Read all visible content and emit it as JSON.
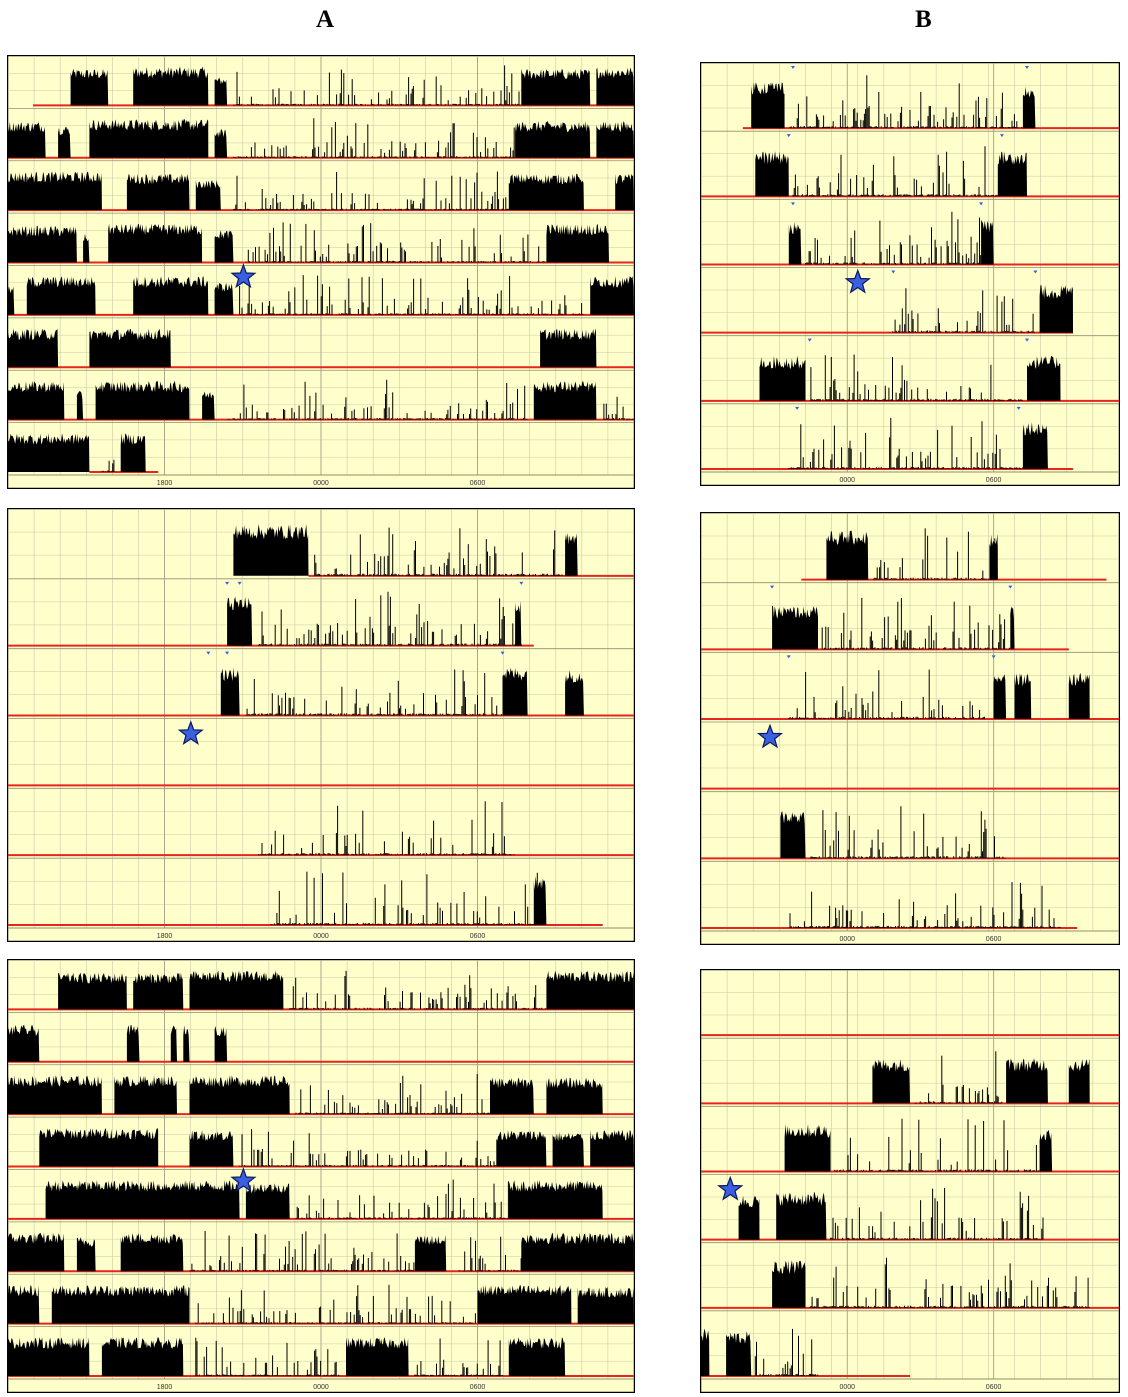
{
  "columns": [
    {
      "label": "A"
    },
    {
      "label": "B"
    }
  ],
  "style": {
    "background": "#ffffcc",
    "grid": "#c9c9a6",
    "activity": "#000000",
    "baseline": "#e8241c",
    "marker": "#2e62e6",
    "star_fill": "#3a5fe0",
    "border": "#000000"
  },
  "chart_data": [
    {
      "type": "actogram",
      "column": "A",
      "panel": 1,
      "x_tick_labels": [
        "1800",
        "0000",
        "0600"
      ],
      "rows": 8,
      "star_row": 4,
      "activity_rows": [
        [
          [
            0.1,
            0.16,
            0.9
          ],
          [
            0.2,
            0.32,
            0.95
          ],
          [
            0.33,
            0.35,
            0.7
          ],
          [
            0.36,
            0.82,
            0.25
          ],
          [
            0.82,
            0.93,
            0.9
          ],
          [
            0.94,
            1.0,
            0.95
          ]
        ],
        [
          [
            0.0,
            0.06,
            0.9
          ],
          [
            0.08,
            0.1,
            0.8
          ],
          [
            0.13,
            0.32,
            0.95
          ],
          [
            0.33,
            0.35,
            0.7
          ],
          [
            0.36,
            0.81,
            0.25
          ],
          [
            0.81,
            0.93,
            0.9
          ],
          [
            0.94,
            1.0,
            0.9
          ]
        ],
        [
          [
            0.0,
            0.15,
            0.95
          ],
          [
            0.19,
            0.29,
            0.9
          ],
          [
            0.3,
            0.34,
            0.75
          ],
          [
            0.36,
            0.8,
            0.25
          ],
          [
            0.8,
            0.92,
            0.9
          ],
          [
            0.97,
            1.0,
            0.9
          ]
        ],
        [
          [
            0.0,
            0.11,
            0.9
          ],
          [
            0.12,
            0.13,
            0.7
          ],
          [
            0.16,
            0.31,
            0.95
          ],
          [
            0.33,
            0.36,
            0.8
          ],
          [
            0.38,
            0.86,
            0.3
          ],
          [
            0.86,
            0.96,
            0.95
          ]
        ],
        [
          [
            0.0,
            0.01,
            0.7
          ],
          [
            0.03,
            0.14,
            0.95
          ],
          [
            0.2,
            0.32,
            0.95
          ],
          [
            0.33,
            0.36,
            0.8
          ],
          [
            0.37,
            0.92,
            0.3
          ],
          [
            0.93,
            1.0,
            0.95
          ]
        ],
        [
          [
            0.0,
            0.08,
            0.95
          ],
          [
            0.13,
            0.26,
            0.95
          ],
          [
            0.85,
            0.94,
            0.95
          ]
        ],
        [
          [
            0.0,
            0.09,
            0.95
          ],
          [
            0.11,
            0.12,
            0.7
          ],
          [
            0.14,
            0.29,
            0.95
          ],
          [
            0.31,
            0.33,
            0.7
          ],
          [
            0.35,
            0.83,
            0.3
          ],
          [
            0.84,
            0.94,
            0.95
          ],
          [
            0.95,
            1.0,
            0.6
          ]
        ],
        [
          [
            0.0,
            0.13,
            0.95
          ],
          [
            0.15,
            0.17,
            0.6
          ],
          [
            0.18,
            0.22,
            0.95
          ]
        ]
      ],
      "red_rows": [
        [
          [
            0.04,
            1.0
          ]
        ],
        [
          [
            0.0,
            1.0
          ]
        ],
        [
          [
            0.0,
            1.0
          ]
        ],
        [
          [
            0.0,
            1.0
          ]
        ],
        [
          [
            0.0,
            1.0
          ]
        ],
        [
          [
            0.0,
            1.0
          ]
        ],
        [
          [
            0.0,
            1.0
          ]
        ],
        [
          [
            0.13,
            0.24
          ]
        ]
      ],
      "markers": []
    },
    {
      "type": "actogram",
      "column": "A",
      "panel": 2,
      "x_tick_labels": [
        "1800",
        "0000",
        "0600"
      ],
      "rows": 6,
      "star_row": 3,
      "activity_rows": [
        [
          [
            0.36,
            0.48,
            0.95
          ],
          [
            0.49,
            0.9,
            0.35
          ],
          [
            0.89,
            0.91,
            0.8
          ]
        ],
        [
          [
            0.35,
            0.39,
            0.9
          ],
          [
            0.4,
            0.82,
            0.4
          ],
          [
            0.81,
            0.82,
            0.85
          ]
        ],
        [
          [
            0.34,
            0.37,
            0.9
          ],
          [
            0.38,
            0.79,
            0.4
          ],
          [
            0.79,
            0.83,
            0.9
          ],
          [
            0.89,
            0.92,
            0.85
          ]
        ],
        [],
        [
          [
            0.4,
            0.81,
            0.4
          ]
        ],
        [
          [
            0.42,
            0.85,
            0.4
          ],
          [
            0.84,
            0.86,
            0.9
          ]
        ]
      ],
      "red_rows": [
        [
          [
            0.48,
            1.0
          ]
        ],
        [
          [
            0.0,
            0.84
          ]
        ],
        [
          [
            0.0,
            1.0
          ]
        ],
        [
          [
            0.0,
            1.0
          ]
        ],
        [
          [
            0.0,
            1.0
          ]
        ],
        [
          [
            0.0,
            0.95
          ]
        ]
      ],
      "markers": [
        [
          1,
          0.35
        ],
        [
          1,
          0.37
        ],
        [
          1,
          0.82
        ],
        [
          2,
          0.32
        ],
        [
          2,
          0.35
        ],
        [
          2,
          0.79
        ]
      ]
    },
    {
      "type": "actogram",
      "column": "A",
      "panel": 3,
      "x_tick_labels": [
        "1800",
        "0000",
        "0600"
      ],
      "rows": 8,
      "star_row": 4,
      "activity_rows": [
        [
          [
            0.08,
            0.19,
            0.9
          ],
          [
            0.2,
            0.28,
            0.9
          ],
          [
            0.29,
            0.44,
            0.95
          ],
          [
            0.45,
            0.86,
            0.3
          ],
          [
            0.86,
            1.0,
            0.95
          ]
        ],
        [
          [
            0.0,
            0.05,
            0.9
          ],
          [
            0.19,
            0.21,
            0.9
          ],
          [
            0.26,
            0.27,
            0.9
          ],
          [
            0.28,
            0.29,
            0.9
          ],
          [
            0.33,
            0.35,
            0.9
          ]
        ],
        [
          [
            0.0,
            0.15,
            0.95
          ],
          [
            0.17,
            0.27,
            0.95
          ],
          [
            0.29,
            0.45,
            0.95
          ],
          [
            0.46,
            0.77,
            0.35
          ],
          [
            0.77,
            0.84,
            0.9
          ],
          [
            0.86,
            0.95,
            0.9
          ]
        ],
        [
          [
            0.05,
            0.24,
            0.95
          ],
          [
            0.29,
            0.36,
            0.9
          ],
          [
            0.37,
            0.78,
            0.35
          ],
          [
            0.78,
            0.86,
            0.9
          ],
          [
            0.87,
            0.92,
            0.85
          ],
          [
            0.93,
            1.0,
            0.9
          ]
        ],
        [
          [
            0.06,
            0.37,
            0.95
          ],
          [
            0.38,
            0.45,
            0.9
          ],
          [
            0.46,
            0.8,
            0.35
          ],
          [
            0.8,
            0.95,
            0.95
          ]
        ],
        [
          [
            0.0,
            0.09,
            0.95
          ],
          [
            0.11,
            0.14,
            0.85
          ],
          [
            0.18,
            0.28,
            0.95
          ],
          [
            0.29,
            0.65,
            0.3
          ],
          [
            0.65,
            0.7,
            0.9
          ],
          [
            0.72,
            0.82,
            0.5
          ],
          [
            0.82,
            1.0,
            0.95
          ]
        ],
        [
          [
            0.0,
            0.05,
            0.95
          ],
          [
            0.07,
            0.29,
            0.95
          ],
          [
            0.3,
            0.75,
            0.35
          ],
          [
            0.75,
            0.9,
            0.95
          ],
          [
            0.91,
            1.0,
            0.9
          ]
        ],
        [
          [
            0.0,
            0.13,
            0.95
          ],
          [
            0.15,
            0.28,
            0.95
          ],
          [
            0.3,
            0.53,
            0.3
          ],
          [
            0.54,
            0.64,
            0.95
          ],
          [
            0.65,
            0.79,
            0.4
          ],
          [
            0.8,
            0.89,
            0.95
          ]
        ]
      ],
      "red_rows": [
        [
          [
            0.0,
            1.0
          ]
        ],
        [
          [
            0.0,
            1.0
          ]
        ],
        [
          [
            0.0,
            1.0
          ]
        ],
        [
          [
            0.0,
            1.0
          ]
        ],
        [
          [
            0.0,
            1.0
          ]
        ],
        [
          [
            0.0,
            1.0
          ]
        ],
        [
          [
            0.0,
            1.0
          ]
        ],
        [
          [
            0.0,
            1.0
          ]
        ]
      ],
      "markers": []
    },
    {
      "type": "actogram",
      "column": "B",
      "panel": 1,
      "x_tick_labels": [
        "0000",
        "0600"
      ],
      "rows": 6,
      "star_row": 3,
      "activity_rows": [
        [
          [
            0.12,
            0.2,
            0.9
          ],
          [
            0.21,
            0.77,
            0.3
          ],
          [
            0.77,
            0.8,
            0.8
          ]
        ],
        [
          [
            0.13,
            0.21,
            0.85
          ],
          [
            0.22,
            0.71,
            0.3
          ],
          [
            0.71,
            0.78,
            0.85
          ]
        ],
        [
          [
            0.21,
            0.24,
            0.8
          ],
          [
            0.25,
            0.67,
            0.3
          ],
          [
            0.67,
            0.7,
            0.85
          ]
        ],
        [
          [
            0.45,
            0.8,
            0.35
          ],
          [
            0.81,
            0.89,
            0.9
          ]
        ],
        [
          [
            0.14,
            0.25,
            0.85
          ],
          [
            0.26,
            0.77,
            0.3
          ],
          [
            0.78,
            0.86,
            0.85
          ]
        ],
        [
          [
            0.21,
            0.77,
            0.3
          ],
          [
            0.77,
            0.83,
            0.9
          ]
        ]
      ],
      "red_rows": [
        [
          [
            0.1,
            1.0
          ]
        ],
        [
          [
            0.0,
            1.0
          ]
        ],
        [
          [
            0.0,
            1.0
          ]
        ],
        [
          [
            0.0,
            0.89
          ]
        ],
        [
          [
            0.0,
            1.0
          ]
        ],
        [
          [
            0.0,
            0.89
          ]
        ]
      ],
      "markers": [
        [
          0,
          0.22
        ],
        [
          0,
          0.78
        ],
        [
          1,
          0.21
        ],
        [
          1,
          0.72
        ],
        [
          2,
          0.22
        ],
        [
          2,
          0.67
        ],
        [
          3,
          0.46
        ],
        [
          3,
          0.8
        ],
        [
          4,
          0.26
        ],
        [
          4,
          0.78
        ],
        [
          5,
          0.23
        ],
        [
          5,
          0.76
        ]
      ]
    },
    {
      "type": "actogram",
      "column": "B",
      "panel": 2,
      "x_tick_labels": [
        "0000",
        "0600"
      ],
      "rows": 6,
      "star_row": 3,
      "activity_rows": [
        [
          [
            0.3,
            0.4,
            0.9
          ],
          [
            0.41,
            0.71,
            0.35
          ],
          [
            0.69,
            0.71,
            0.85
          ]
        ],
        [
          [
            0.17,
            0.28,
            0.8
          ],
          [
            0.29,
            0.74,
            0.35
          ],
          [
            0.74,
            0.75,
            0.8
          ]
        ],
        [
          [
            0.21,
            0.68,
            0.4
          ],
          [
            0.7,
            0.73,
            0.9
          ],
          [
            0.75,
            0.79,
            0.85
          ],
          [
            0.88,
            0.93,
            0.85
          ]
        ],
        [],
        [
          [
            0.19,
            0.25,
            0.9
          ],
          [
            0.26,
            0.73,
            0.4
          ]
        ],
        [
          [
            0.21,
            0.86,
            0.4
          ]
        ]
      ],
      "red_rows": [
        [
          [
            0.24,
            0.97
          ]
        ],
        [
          [
            0.0,
            0.88
          ]
        ],
        [
          [
            0.0,
            1.0
          ]
        ],
        [
          [
            0.0,
            1.0
          ]
        ],
        [
          [
            0.0,
            1.0
          ]
        ],
        [
          [
            0.0,
            0.9
          ]
        ]
      ],
      "markers": [
        [
          1,
          0.17
        ],
        [
          1,
          0.74
        ],
        [
          2,
          0.21
        ],
        [
          2,
          0.7
        ]
      ]
    },
    {
      "type": "actogram",
      "column": "B",
      "panel": 3,
      "x_tick_labels": [
        "0000",
        "0600"
      ],
      "rows": 6,
      "star_row": 3,
      "activity_rows": [
        [],
        [
          [
            0.41,
            0.5,
            0.85
          ],
          [
            0.51,
            0.72,
            0.3
          ],
          [
            0.73,
            0.83,
            0.85
          ],
          [
            0.88,
            0.93,
            0.85
          ]
        ],
        [
          [
            0.2,
            0.31,
            0.9
          ],
          [
            0.32,
            0.81,
            0.3
          ],
          [
            0.81,
            0.84,
            0.8
          ]
        ],
        [
          [
            0.09,
            0.14,
            0.85
          ],
          [
            0.18,
            0.3,
            0.9
          ],
          [
            0.31,
            0.82,
            0.35
          ]
        ],
        [
          [
            0.17,
            0.25,
            0.9
          ],
          [
            0.26,
            0.93,
            0.4
          ]
        ],
        [
          [
            0.0,
            0.02,
            0.9
          ],
          [
            0.06,
            0.12,
            0.85
          ],
          [
            0.13,
            0.28,
            0.3
          ]
        ]
      ],
      "red_rows": [
        [
          [
            0.0,
            1.0
          ]
        ],
        [
          [
            0.0,
            1.0
          ]
        ],
        [
          [
            0.0,
            1.0
          ]
        ],
        [
          [
            0.0,
            1.0
          ]
        ],
        [
          [
            0.0,
            1.0
          ]
        ],
        [
          [
            0.0,
            0.5
          ]
        ]
      ],
      "markers": []
    }
  ]
}
